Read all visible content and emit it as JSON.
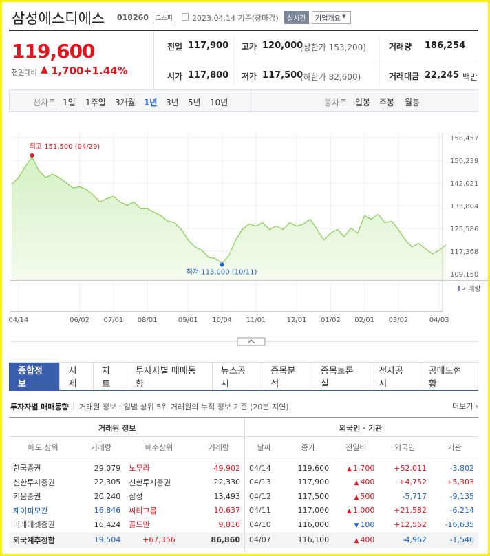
{
  "header": {
    "title": "삼성에스디에스",
    "code": "018260",
    "market": "코스피",
    "date": "2023.04.14 기준(장마감)",
    "realtime": "실시간",
    "company": "기업개요"
  },
  "quote": {
    "price": "119,600",
    "change_label": "전일대비",
    "arrow": "▲",
    "change": "1,700",
    "rate": "+1.44%",
    "items": [
      {
        "label": "전일",
        "value": "117,900"
      },
      {
        "label": "고가",
        "value": "120,000",
        "note": "(상한가 153,200)"
      },
      {
        "label": "거래량",
        "value": "186,254"
      },
      {
        "label": "시가",
        "value": "117,800"
      },
      {
        "label": "저가",
        "value": "117,500",
        "note": "(하한가 82,600)"
      },
      {
        "label": "거래대금",
        "value": "22,245",
        "unit": "백만"
      }
    ]
  },
  "chart_tabs": {
    "line_label": "선차트",
    "periods": [
      "1일",
      "1주일",
      "3개월",
      "1년",
      "3년",
      "5년",
      "10년"
    ],
    "candle_label": "봉차트",
    "candles": [
      "일봉",
      "주봉",
      "월봉"
    ]
  },
  "chart_data": {
    "type": "line",
    "color": "#8ccf5c",
    "values": [
      141500,
      144000,
      148000,
      151500,
      146500,
      144000,
      145200,
      144000,
      142200,
      140200,
      140700,
      139700,
      137700,
      135200,
      136400,
      137200,
      135200,
      133900,
      135200,
      132700,
      132700,
      131400,
      130200,
      128200,
      127700,
      125200,
      121400,
      118900,
      117700,
      115200,
      114700,
      113000,
      115700,
      121400,
      125200,
      127200,
      126400,
      127700,
      125200,
      126400,
      125200,
      127700,
      126400,
      127200,
      128900,
      125200,
      121400,
      123900,
      125200,
      122700,
      125700,
      123900,
      130200,
      128900,
      130700,
      127700,
      128200,
      125200,
      121400,
      118900,
      120200,
      118200,
      116400,
      117700,
      119600
    ],
    "ylim": [
      109150,
      158457
    ],
    "yticks": [
      {
        "value": 109150,
        "label": "109,150"
      },
      {
        "value": 117368,
        "label": "117,368"
      },
      {
        "value": 125586,
        "label": "125,586"
      },
      {
        "value": 133804,
        "label": "133,804"
      },
      {
        "value": 142021,
        "label": "142,021"
      },
      {
        "value": 150239,
        "label": "150,239"
      },
      {
        "value": 158457,
        "label": "158,457"
      }
    ],
    "xlim": [
      0,
      64
    ],
    "xticks": [
      {
        "value": 1,
        "label": "04/14"
      },
      {
        "value": 10,
        "label": "06/02"
      },
      {
        "value": 15,
        "label": "07/01"
      },
      {
        "value": 20,
        "label": "08/01"
      },
      {
        "value": 26,
        "label": "09/01"
      },
      {
        "value": 31,
        "label": "10/04"
      },
      {
        "value": 36,
        "label": "11/01"
      },
      {
        "value": 42,
        "label": "12/01"
      },
      {
        "value": 47,
        "label": "01/02"
      },
      {
        "value": 52,
        "label": "02/01"
      },
      {
        "value": 57,
        "label": "03/02"
      },
      {
        "value": 63,
        "label": "04/03"
      }
    ],
    "grid": true,
    "high_label": "최고 151,500 (04/29)",
    "low_label": "최저 113,000 (10/11)",
    "volume_label": "거래량"
  },
  "nav": [
    "종합정보",
    "시세",
    "차트",
    "투자자별 매매동향",
    "뉴스공시",
    "종목분석",
    "종목토론실",
    "전자공시",
    "공매도현황"
  ],
  "section": {
    "title": "투자자별 매매동향",
    "desc": "거래원 정보 : 일별 상위 5위 거래원의 누적 정보 기준 (20분 지연)",
    "more": "더보기"
  },
  "broker_table": {
    "title": "거래원 정보",
    "headers": [
      "매도 상위",
      "거래량",
      "매수상위",
      "거래량"
    ],
    "rows": [
      [
        "한국증권",
        "29,079",
        "노무라",
        "49,902"
      ],
      [
        "신한투자증권",
        "22,305",
        "신한투자증권",
        "22,330"
      ],
      [
        "키움증권",
        "20,240",
        "삼성",
        "13,493"
      ],
      [
        "제이피모간",
        "16,846",
        "씨티그룹",
        "10,637"
      ],
      [
        "미래에셋증권",
        "16,424",
        "골드만",
        "9,816"
      ],
      [
        "외국계추정합",
        "19,504",
        "+67,356",
        "86,860"
      ]
    ]
  },
  "investor_table": {
    "title": "외국인 · 기관",
    "headers": [
      "날짜",
      "종가",
      "전일비",
      "외국인",
      "기관"
    ],
    "rows": [
      [
        "04/14",
        "119,600",
        "▲",
        "1,700",
        "+52,011",
        "-3,802"
      ],
      [
        "04/13",
        "117,900",
        "▲",
        "400",
        "+4,752",
        "+5,303"
      ],
      [
        "04/12",
        "117,500",
        "▲",
        "500",
        "-5,717",
        "-9,135"
      ],
      [
        "04/11",
        "117,000",
        "▲",
        "1,000",
        "+21,582",
        "-6,214"
      ],
      [
        "04/10",
        "116,000",
        "▼",
        "100",
        "+12,562",
        "-16,635"
      ],
      [
        "04/07",
        "116,100",
        "▲",
        "400",
        "-4,962",
        "-1,546"
      ]
    ]
  }
}
